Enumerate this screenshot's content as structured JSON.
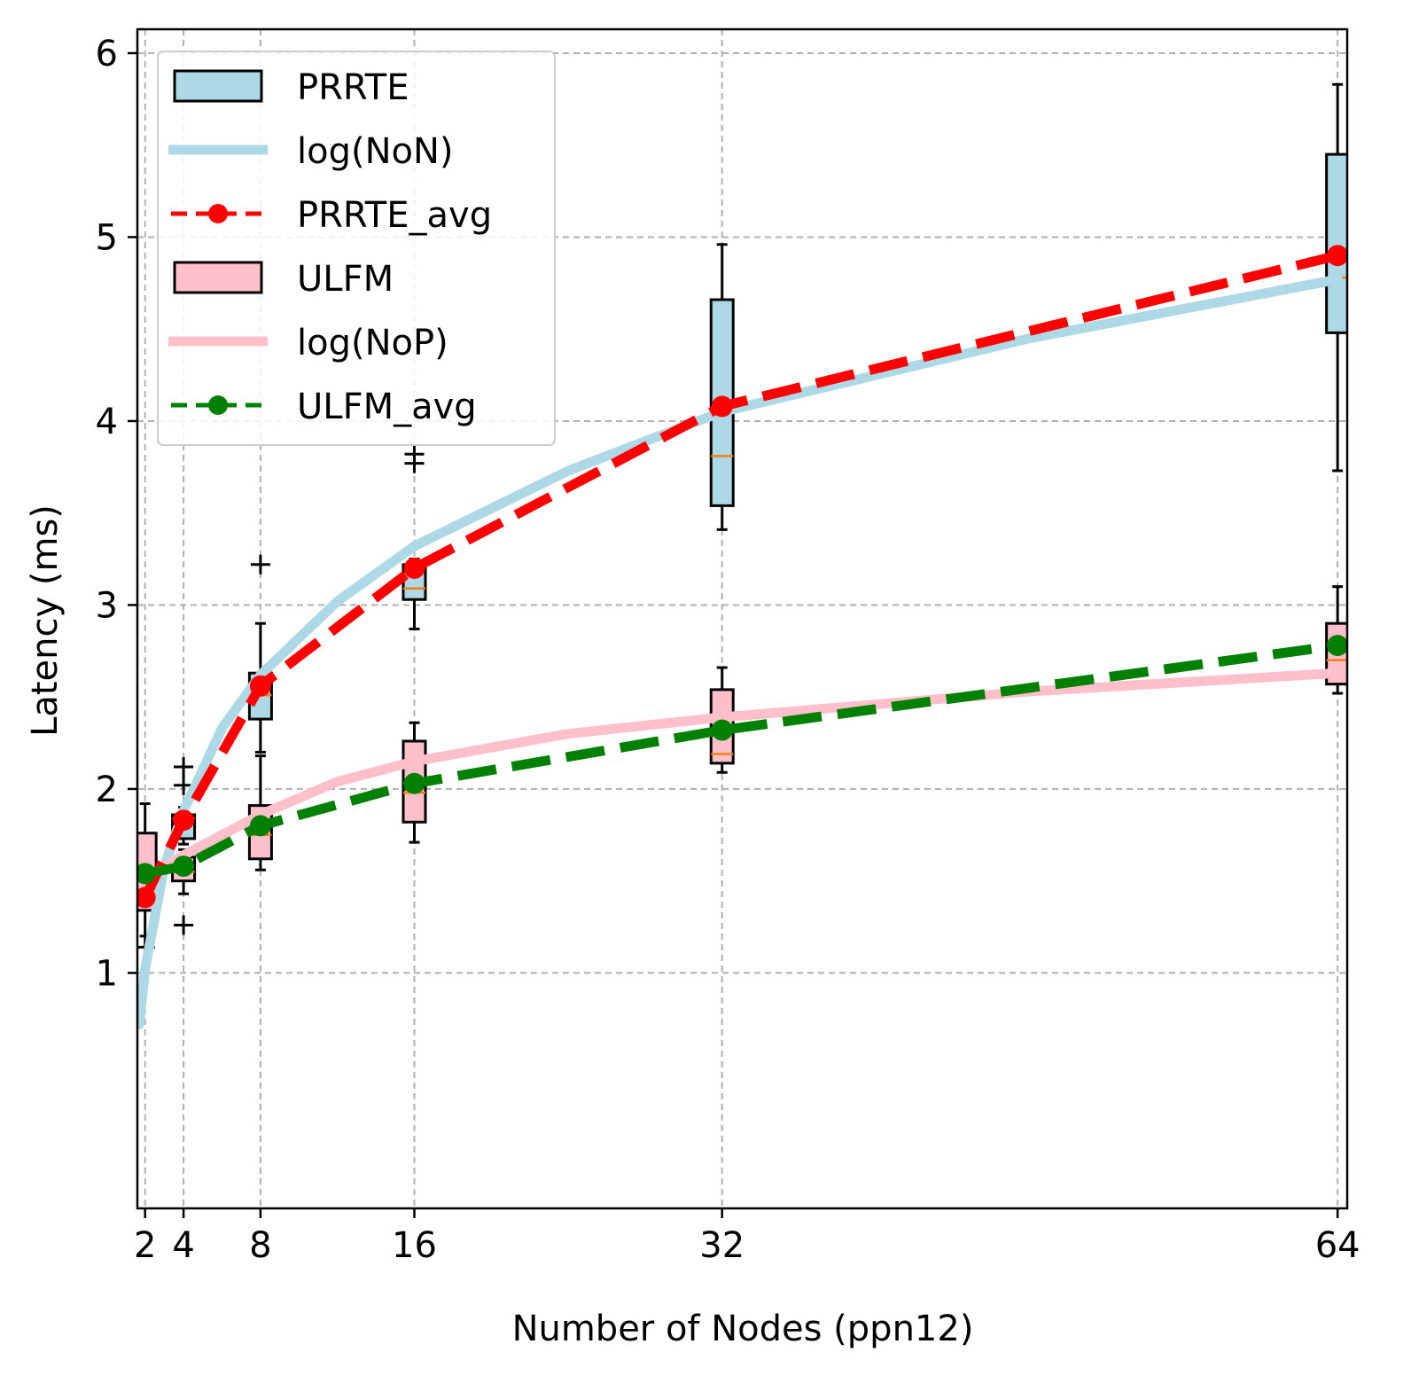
{
  "chart_data": {
    "type": "box",
    "xlabel": "Number of Nodes (ppn12)",
    "ylabel": "Latency (ms)",
    "x_ticks": [
      2,
      4,
      8,
      16,
      32,
      64
    ],
    "y_ticks": [
      1,
      2,
      3,
      4,
      5,
      6
    ],
    "xlim": [
      1.6,
      64.5
    ],
    "ylim": [
      -0.28,
      6.13
    ],
    "grid": true,
    "legend_position": "top-left",
    "colors": {
      "prrte_box": "#add8e6",
      "ulfm_box": "#ffc0cb",
      "prrte_avg": "#ff0000",
      "ulfm_avg": "#008000",
      "median": "#ff7f0e"
    },
    "legend": [
      {
        "label": "PRRTE",
        "kind": "box",
        "color": "#add8e6"
      },
      {
        "label": "log(NoN)",
        "kind": "line",
        "color": "#add8e6"
      },
      {
        "label": "PRRTE_avg",
        "kind": "dashed-marker",
        "color": "#ff0000"
      },
      {
        "label": "ULFM",
        "kind": "box",
        "color": "#ffc0cb"
      },
      {
        "label": "log(NoP)",
        "kind": "line",
        "color": "#ffc0cb"
      },
      {
        "label": "ULFM_avg",
        "kind": "dashed-marker",
        "color": "#008000"
      }
    ],
    "series": [
      {
        "name": "PRRTE",
        "kind": "box",
        "boxes": [
          {
            "x": 2,
            "q1": 1.38,
            "median": 1.5,
            "q3": 1.62,
            "wlo": 1.36,
            "whi": 1.66,
            "fliers": []
          },
          {
            "x": 4,
            "q1": 1.73,
            "median": 1.84,
            "q3": 1.86,
            "wlo": 1.7,
            "whi": 1.9,
            "fliers": [
              2.02,
              2.12
            ]
          },
          {
            "x": 8,
            "q1": 2.38,
            "median": 2.51,
            "q3": 2.63,
            "wlo": 2.2,
            "whi": 2.9,
            "fliers": [
              3.22
            ]
          },
          {
            "x": 16,
            "q1": 3.03,
            "median": 3.09,
            "q3": 3.22,
            "wlo": 2.87,
            "whi": 3.25,
            "fliers": [
              3.77,
              3.82
            ]
          },
          {
            "x": 32,
            "q1": 3.54,
            "median": 3.81,
            "q3": 4.66,
            "wlo": 3.41,
            "whi": 4.96,
            "fliers": []
          },
          {
            "x": 64,
            "q1": 4.48,
            "median": 4.78,
            "q3": 5.45,
            "wlo": 3.73,
            "whi": 5.83,
            "fliers": []
          }
        ]
      },
      {
        "name": "ULFM",
        "kind": "box",
        "boxes": [
          {
            "x": 2,
            "q1": 1.34,
            "median": 1.55,
            "q3": 1.76,
            "wlo": 1.2,
            "whi": 1.92,
            "fliers": [
              1.14
            ]
          },
          {
            "x": 4,
            "q1": 1.5,
            "median": 1.55,
            "q3": 1.63,
            "wlo": 1.43,
            "whi": 1.67,
            "fliers": [
              1.26
            ]
          },
          {
            "x": 8,
            "q1": 1.62,
            "median": 1.75,
            "q3": 1.91,
            "wlo": 1.56,
            "whi": 2.18,
            "fliers": []
          },
          {
            "x": 16,
            "q1": 1.82,
            "median": 1.98,
            "q3": 2.26,
            "wlo": 1.71,
            "whi": 2.36,
            "fliers": []
          },
          {
            "x": 32,
            "q1": 2.14,
            "median": 2.19,
            "q3": 2.54,
            "wlo": 2.09,
            "whi": 2.66,
            "fliers": []
          },
          {
            "x": 64,
            "q1": 2.57,
            "median": 2.7,
            "q3": 2.9,
            "wlo": 2.52,
            "whi": 3.1,
            "fliers": []
          }
        ]
      },
      {
        "name": "PRRTE_avg",
        "kind": "line",
        "x": [
          2,
          4,
          8,
          16,
          32,
          64
        ],
        "y": [
          1.41,
          1.83,
          2.56,
          3.2,
          4.08,
          4.9
        ]
      },
      {
        "name": "ULFM_avg",
        "kind": "line",
        "x": [
          2,
          4,
          8,
          16,
          32,
          64
        ],
        "y": [
          1.54,
          1.58,
          1.8,
          2.03,
          2.32,
          2.78
        ]
      },
      {
        "name": "log(NoN)",
        "kind": "curve",
        "x": [
          1.7,
          2,
          3,
          4,
          6,
          8,
          12,
          16,
          24,
          32,
          48,
          64
        ],
        "y": [
          0.72,
          1.02,
          1.58,
          1.88,
          2.33,
          2.62,
          3.02,
          3.32,
          3.73,
          4.05,
          4.45,
          4.77
        ]
      },
      {
        "name": "log(NoP)",
        "kind": "curve",
        "x": [
          2,
          3,
          4,
          6,
          8,
          12,
          16,
          24,
          32,
          48,
          64
        ],
        "y": [
          1.47,
          1.58,
          1.64,
          1.75,
          1.86,
          2.04,
          2.15,
          2.3,
          2.39,
          2.53,
          2.63
        ]
      }
    ]
  }
}
